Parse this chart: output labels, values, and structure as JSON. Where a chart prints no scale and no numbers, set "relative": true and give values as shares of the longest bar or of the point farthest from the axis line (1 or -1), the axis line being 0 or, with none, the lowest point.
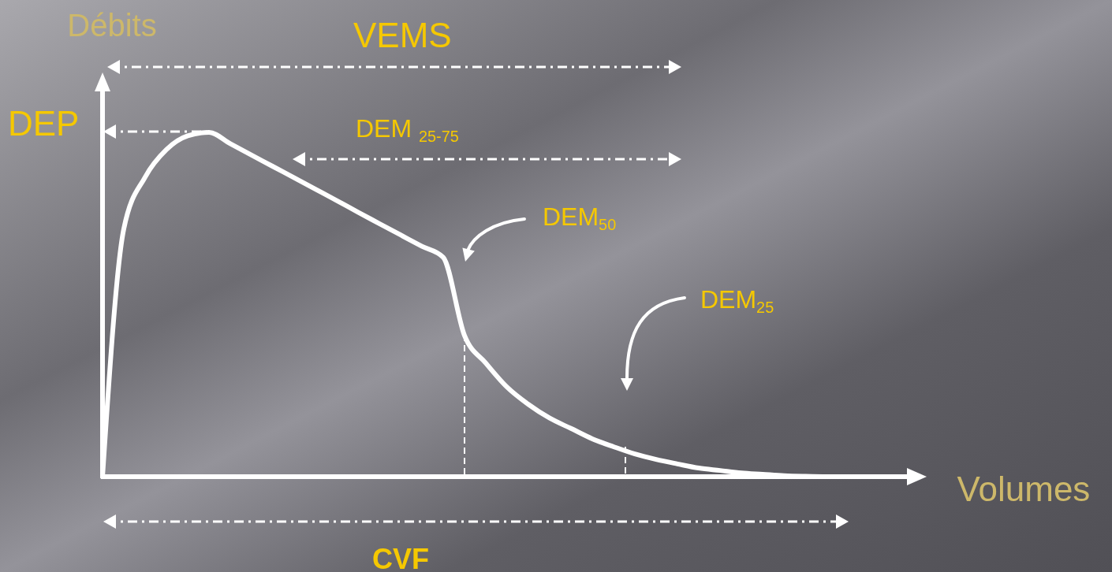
{
  "chart_data": {
    "type": "line",
    "relative": true,
    "xlabel": "Volumes",
    "ylabel": "Débits",
    "color": "#ffffff",
    "categories": [
      null,
      null,
      null,
      null,
      null,
      null,
      null,
      null,
      null,
      null,
      null,
      null,
      null,
      null,
      null,
      null,
      null,
      null,
      null,
      null,
      null,
      null,
      null,
      null,
      null,
      null,
      null,
      null,
      null,
      null,
      null,
      null,
      null,
      null,
      null,
      null
    ],
    "values": [
      0,
      0.72,
      0.87,
      0.95,
      0.99,
      1,
      0.967,
      0.934,
      0.901,
      0.868,
      0.835,
      0.802,
      0.768,
      0.735,
      0.702,
      0.669,
      0.637,
      0.41,
      0.33,
      0.26,
      0.21,
      0.17,
      0.14,
      0.11,
      0.087,
      0.066,
      0.05,
      0.037,
      0.025,
      0.018,
      0.011,
      0.007,
      0.003,
      0.001,
      0,
      0
    ],
    "annotations": [
      "VEMS",
      "DEP",
      "DEM $_{25-75}$",
      "DEM$_{50}$",
      "DEM$_{25}$",
      "CVF"
    ]
  }
}
